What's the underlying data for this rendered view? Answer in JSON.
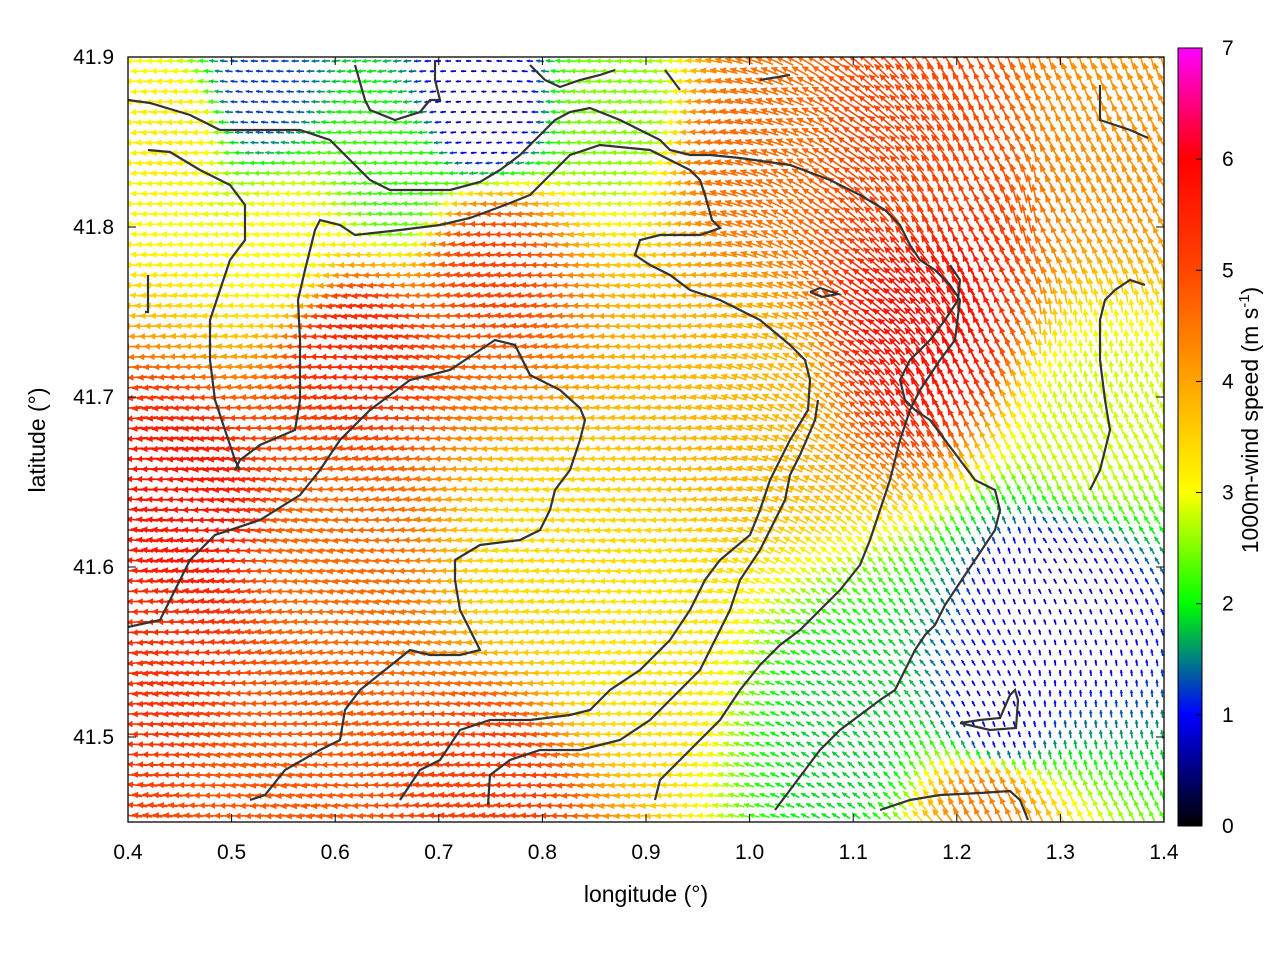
{
  "chart_data": {
    "type": "vector-field",
    "xlabel": "longitude (°)",
    "ylabel": "latitude (°)",
    "colorbar_label": "1000m-wind speed (m s",
    "colorbar_label_sup": "-1",
    "colorbar_label_close": ")",
    "xlim": [
      0.4,
      1.4
    ],
    "ylim": [
      41.45,
      41.9
    ],
    "clim": [
      0,
      7
    ],
    "x_ticks": [
      "0.4",
      "0.5",
      "0.6",
      "0.7",
      "0.8",
      "0.9",
      "1.0",
      "1.1",
      "1.2",
      "1.3",
      "1.4"
    ],
    "x_tick_values": [
      0.4,
      0.5,
      0.6,
      0.7,
      0.8,
      0.9,
      1.0,
      1.1,
      1.2,
      1.3,
      1.4
    ],
    "y_ticks": [
      "41.5",
      "41.6",
      "41.7",
      "41.8",
      "41.9"
    ],
    "y_tick_values": [
      41.5,
      41.6,
      41.7,
      41.8,
      41.9
    ],
    "colorbar_ticks": [
      "0",
      "1",
      "2",
      "3",
      "4",
      "5",
      "6",
      "7"
    ],
    "colorbar_tick_values": [
      0,
      1,
      2,
      3,
      4,
      5,
      6,
      7
    ],
    "colormap": [
      "#000000",
      "#0000ff",
      "#00ff00",
      "#ffff00",
      "#ffa500",
      "#ff4500",
      "#ff0000",
      "#ff00ff"
    ],
    "contour_color": "#333333",
    "speed_anchors": [
      {
        "lon": 0.45,
        "lat": 41.63,
        "speed": 5.7
      },
      {
        "lon": 0.42,
        "lat": 41.55,
        "speed": 5.3
      },
      {
        "lon": 0.62,
        "lat": 41.73,
        "speed": 5.4
      },
      {
        "lon": 0.75,
        "lat": 41.78,
        "speed": 5.0
      },
      {
        "lon": 0.6,
        "lat": 41.6,
        "speed": 4.6
      },
      {
        "lon": 0.8,
        "lat": 41.6,
        "speed": 3.4
      },
      {
        "lon": 0.88,
        "lat": 41.55,
        "speed": 3.3
      },
      {
        "lon": 1.0,
        "lat": 41.7,
        "speed": 3.8
      },
      {
        "lon": 1.17,
        "lat": 41.74,
        "speed": 5.8
      },
      {
        "lon": 1.15,
        "lat": 41.85,
        "speed": 5.0
      },
      {
        "lon": 1.0,
        "lat": 41.85,
        "speed": 4.6
      },
      {
        "lon": 0.74,
        "lat": 41.87,
        "speed": 0.6
      },
      {
        "lon": 0.52,
        "lat": 41.88,
        "speed": 1.2
      },
      {
        "lon": 0.66,
        "lat": 41.83,
        "speed": 2.2
      },
      {
        "lon": 0.55,
        "lat": 41.79,
        "speed": 3.0
      },
      {
        "lon": 0.45,
        "lat": 41.86,
        "speed": 3.2
      },
      {
        "lon": 0.87,
        "lat": 41.87,
        "speed": 2.5
      },
      {
        "lon": 1.33,
        "lat": 41.68,
        "speed": 2.8
      },
      {
        "lon": 1.3,
        "lat": 41.58,
        "speed": 0.7
      },
      {
        "lon": 1.24,
        "lat": 41.51,
        "speed": 0.8
      },
      {
        "lon": 1.1,
        "lat": 41.5,
        "speed": 1.8
      },
      {
        "lon": 1.23,
        "lat": 41.46,
        "speed": 4.4
      },
      {
        "lon": 1.38,
        "lat": 41.86,
        "speed": 4.2
      },
      {
        "lon": 0.75,
        "lat": 41.47,
        "speed": 5.1
      },
      {
        "lon": 0.55,
        "lat": 41.48,
        "speed": 4.8
      }
    ]
  }
}
